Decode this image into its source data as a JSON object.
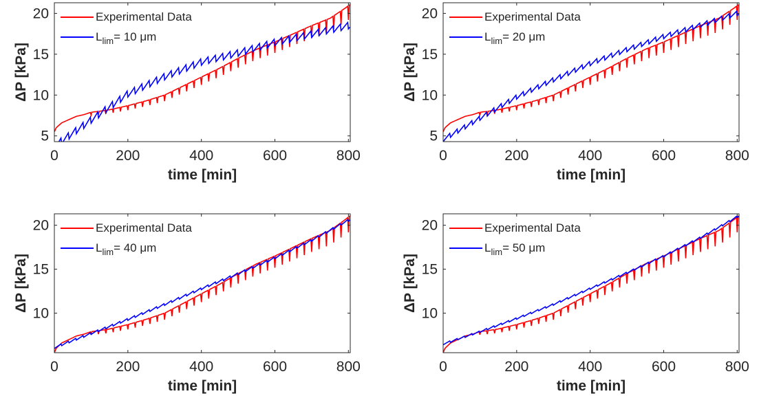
{
  "colors": {
    "experimental": "#ff0000",
    "model": "#0000ff",
    "axes": "#262626"
  },
  "chart_data": [
    {
      "type": "line",
      "xlabel": "time [min]",
      "ylabel": "ΔP [kPa]",
      "xlim": [
        0,
        805
      ],
      "ylim": [
        4.3,
        21.3
      ],
      "xticks": [
        "0",
        "200",
        "400",
        "600",
        "800"
      ],
      "yticks": [
        "5",
        "10",
        "15",
        "20"
      ],
      "legend": {
        "position": "top-left",
        "entries": [
          "Experimental Data",
          "L",
          "lim",
          "= 10 μm"
        ]
      },
      "series": [
        {
          "name": "Experimental Data",
          "x": [
            0,
            5,
            20,
            40,
            60,
            80,
            100,
            120,
            150,
            200,
            250,
            300,
            350,
            400,
            450,
            500,
            550,
            600,
            650,
            700,
            750,
            790,
            805
          ],
          "y": [
            5.5,
            6.0,
            6.6,
            7.0,
            7.4,
            7.6,
            7.9,
            8.0,
            8.2,
            8.7,
            9.3,
            10.0,
            11.1,
            12.2,
            13.3,
            14.5,
            15.6,
            16.5,
            17.5,
            18.5,
            19.4,
            20.6,
            21.1
          ]
        },
        {
          "name": "L_lim = 10 μm",
          "x": [
            0,
            100,
            200,
            300,
            400,
            500,
            600,
            700,
            805
          ],
          "y": [
            3.8,
            7.0,
            10.2,
            12.3,
            14.1,
            15.2,
            16.5,
            17.5,
            18.6
          ]
        }
      ]
    },
    {
      "type": "line",
      "xlabel": "time [min]",
      "ylabel": "ΔP [kPa]",
      "xlim": [
        0,
        805
      ],
      "ylim": [
        4.3,
        21.3
      ],
      "xticks": [
        "0",
        "200",
        "400",
        "600",
        "800"
      ],
      "yticks": [
        "5",
        "10",
        "15",
        "20"
      ],
      "legend": {
        "position": "top-left",
        "entries": [
          "Experimental Data",
          "L",
          "lim",
          "= 20 μm"
        ]
      },
      "series": [
        {
          "name": "Experimental Data",
          "x": [
            0,
            5,
            20,
            40,
            60,
            80,
            100,
            120,
            150,
            200,
            250,
            300,
            350,
            400,
            450,
            500,
            550,
            600,
            650,
            700,
            750,
            790,
            805
          ],
          "y": [
            5.5,
            6.0,
            6.6,
            7.0,
            7.4,
            7.6,
            7.9,
            8.0,
            8.2,
            8.7,
            9.3,
            10.0,
            11.1,
            12.2,
            13.3,
            14.5,
            15.6,
            16.5,
            17.5,
            18.5,
            19.4,
            20.6,
            21.1
          ]
        },
        {
          "name": "L_lim = 20 μm",
          "x": [
            0,
            100,
            200,
            300,
            400,
            500,
            600,
            700,
            805
          ],
          "y": [
            4.6,
            7.2,
            9.8,
            11.9,
            13.9,
            15.6,
            17.2,
            18.6,
            20.1
          ]
        }
      ]
    },
    {
      "type": "line",
      "xlabel": "time [min]",
      "ylabel": "ΔP [kPa]",
      "xlim": [
        0,
        805
      ],
      "ylim": [
        5.5,
        21.3
      ],
      "xticks": [
        "0",
        "200",
        "400",
        "600",
        "800"
      ],
      "yticks": [
        "10",
        "15",
        "20"
      ],
      "legend": {
        "position": "top-left",
        "entries": [
          "Experimental Data",
          "L",
          "lim",
          "= 40 μm"
        ]
      },
      "series": [
        {
          "name": "Experimental Data",
          "x": [
            0,
            5,
            20,
            40,
            60,
            80,
            100,
            120,
            150,
            200,
            250,
            300,
            350,
            400,
            450,
            500,
            550,
            600,
            650,
            700,
            750,
            790,
            805
          ],
          "y": [
            5.5,
            6.0,
            6.6,
            7.0,
            7.4,
            7.6,
            7.9,
            8.0,
            8.2,
            8.7,
            9.3,
            10.0,
            11.1,
            12.2,
            13.3,
            14.5,
            15.6,
            16.5,
            17.5,
            18.5,
            19.4,
            20.6,
            21.1
          ]
        },
        {
          "name": "L_lim = 40 μm",
          "x": [
            0,
            100,
            200,
            300,
            400,
            500,
            600,
            700,
            805
          ],
          "y": [
            6.1,
            7.7,
            9.3,
            11.0,
            12.8,
            14.5,
            16.3,
            18.3,
            20.7
          ]
        }
      ]
    },
    {
      "type": "line",
      "xlabel": "time [min]",
      "ylabel": "ΔP [kPa]",
      "xlim": [
        0,
        805
      ],
      "ylim": [
        5.5,
        21.3
      ],
      "xticks": [
        "0",
        "200",
        "400",
        "600",
        "800"
      ],
      "yticks": [
        "10",
        "15",
        "20"
      ],
      "legend": {
        "position": "top-left",
        "entries": [
          "Experimental Data",
          "L",
          "lim",
          "= 50 μm"
        ]
      },
      "series": [
        {
          "name": "Experimental Data",
          "x": [
            0,
            5,
            20,
            40,
            60,
            80,
            100,
            120,
            150,
            200,
            250,
            300,
            350,
            400,
            450,
            500,
            550,
            600,
            650,
            700,
            750,
            790,
            805
          ],
          "y": [
            5.5,
            6.0,
            6.6,
            7.0,
            7.4,
            7.6,
            7.9,
            8.0,
            8.2,
            8.7,
            9.3,
            10.0,
            11.1,
            12.2,
            13.3,
            14.5,
            15.6,
            16.5,
            17.5,
            18.5,
            19.4,
            20.6,
            21.1
          ]
        },
        {
          "name": "L_lim = 50 μm",
          "x": [
            0,
            100,
            200,
            300,
            400,
            500,
            600,
            700,
            805
          ],
          "y": [
            6.5,
            7.9,
            9.4,
            11.0,
            12.8,
            14.6,
            16.5,
            18.6,
            21.1
          ]
        }
      ]
    }
  ]
}
